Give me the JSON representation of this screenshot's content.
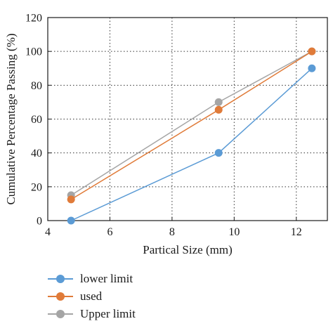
{
  "chart_data": {
    "type": "line",
    "xlabel": "Partical Size (mm)",
    "ylabel": "Cumulative Percentage Passing (%)",
    "xlim": [
      4,
      13
    ],
    "ylim": [
      0,
      120
    ],
    "xticks": [
      4,
      6,
      8,
      10,
      12
    ],
    "yticks": [
      0,
      20,
      40,
      60,
      80,
      100,
      120
    ],
    "grid": true,
    "legend_position": "bottom",
    "series": [
      {
        "name": "lower limit",
        "color": "#5b9bd5",
        "x": [
          4.75,
          9.5,
          12.5
        ],
        "y": [
          0,
          40,
          90
        ]
      },
      {
        "name": "used",
        "color": "#e07b39",
        "x": [
          4.75,
          9.5,
          12.5
        ],
        "y": [
          12.5,
          65.5,
          100
        ]
      },
      {
        "name": "Upper limit",
        "color": "#a5a5a5",
        "x": [
          4.75,
          9.5,
          12.5
        ],
        "y": [
          15,
          70,
          100
        ]
      }
    ]
  }
}
